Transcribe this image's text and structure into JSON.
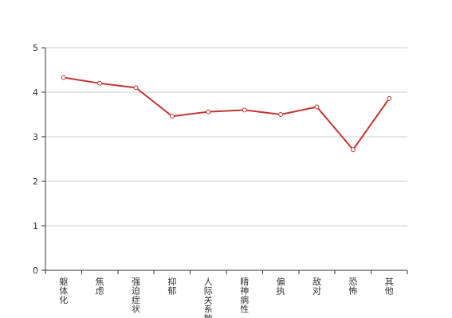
{
  "chart_data": {
    "type": "line",
    "title": "",
    "xlabel": "",
    "ylabel": "",
    "categories": [
      "躯体化",
      "焦虑",
      "强迫症状",
      "抑郁",
      "人际关系敏感",
      "精神病性",
      "偏执",
      "敌对",
      "恐怖",
      "其他"
    ],
    "series": [
      {
        "values": [
          4.33,
          4.2,
          4.1,
          3.46,
          3.56,
          3.6,
          3.5,
          3.67,
          2.71,
          3.86
        ],
        "color": "#c23531"
      }
    ],
    "ylim": [
      0,
      5
    ],
    "yticks": [
      "0",
      "1",
      "2",
      "3",
      "4",
      "5"
    ],
    "grid": true,
    "legend": "none"
  }
}
